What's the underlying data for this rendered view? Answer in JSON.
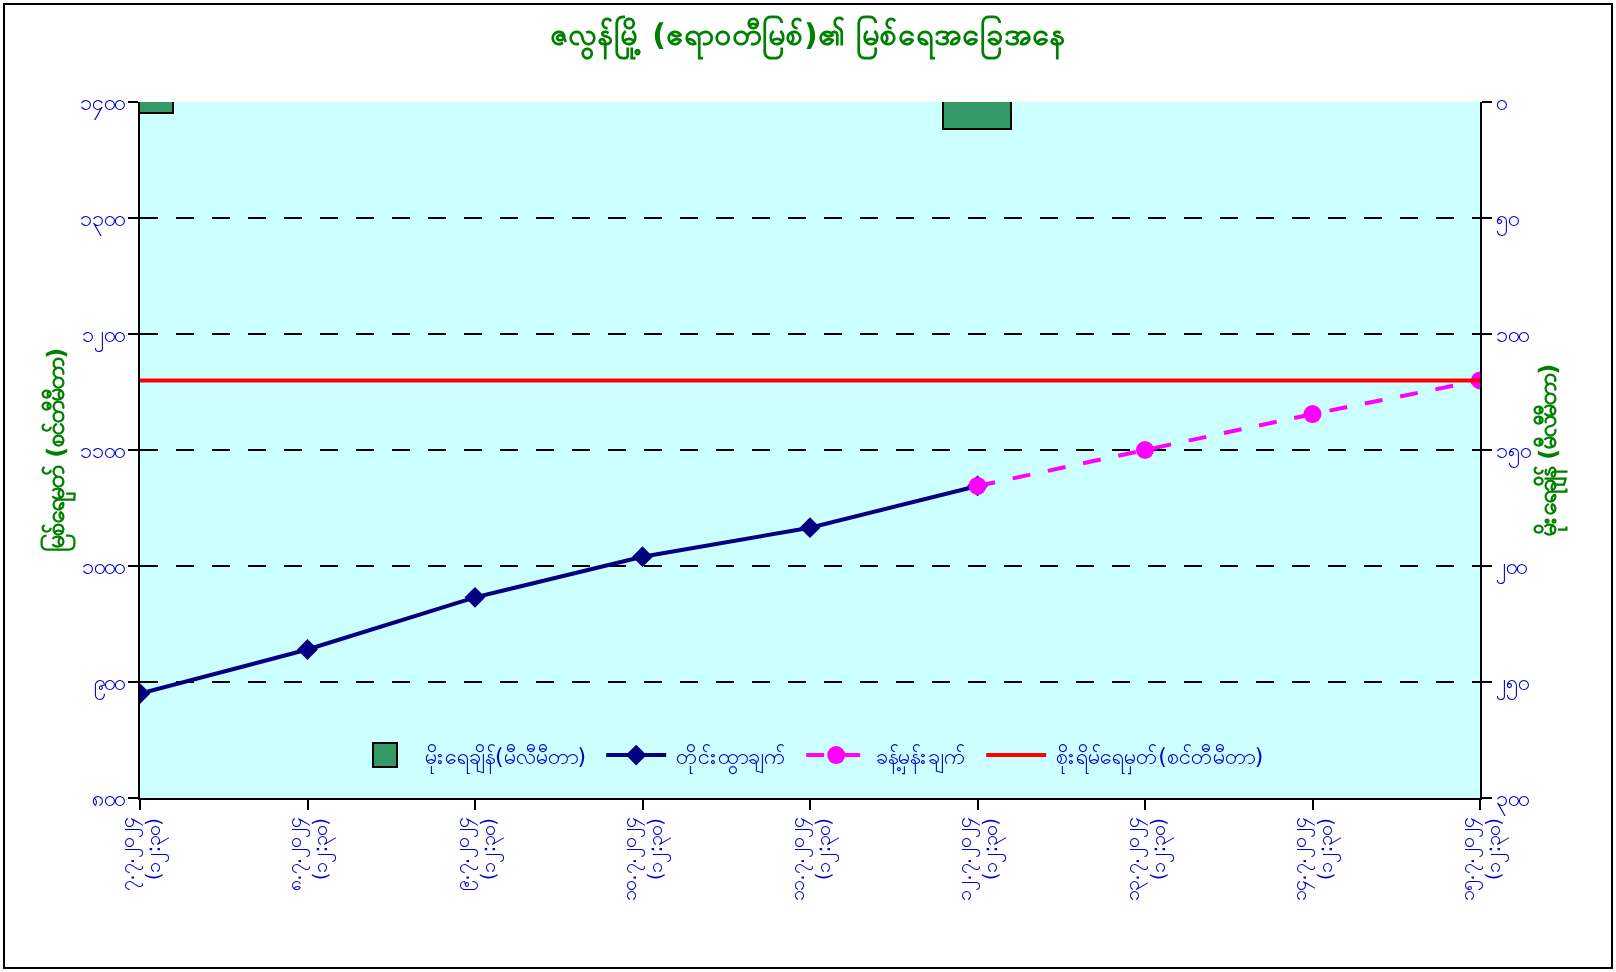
{
  "chart_data": {
    "type": "line",
    "title": "ဇလွန်မြို့ (ဧရာဝတီမြစ်)၏ မြစ်ရေအခြေအနေ",
    "ylabel": "မြစ်ရေမှတ် (စင်တီမီတာ)",
    "y2label": "မိုးရေချိန် (မီလီမီတာ)",
    "categories": [
      "၇.၇.၂၀၂၄ (၁၂:၃၀)",
      "၈.၇.၂၀၂၄ (၁၂:၃၀)",
      "၉.၇.၂၀၂၄ (၁၂:၃၀)",
      "၁၀.၇.၂၀၂၄ (၁၂:၃၀)",
      "၁၁.၇.၂၀၂၄ (၁၂:၃၀)",
      "၁၂.၇.၂၀၂၄ (၁၂:၃၀)",
      "၁၃.၇.၂၀၂၄ (၁၂:၃၀)",
      "၁၄.၇.၂၀၂၄ (၁၂:၃၀)",
      "၁၅.၇.၂၀၂၄ (၁၂:၃၀)"
    ],
    "series": [
      {
        "name": "မိုးရေချိန်(မီလီမီတာ)",
        "type": "bar",
        "axis": "y2",
        "color": "#339966",
        "values": [
          5,
          0,
          0,
          0,
          0,
          12,
          0,
          0,
          0
        ]
      },
      {
        "name": "တိုင်းထွာချက်",
        "color": "#000080",
        "marker": "diamond",
        "line_style": "solid",
        "values": [
          890,
          928,
          973,
          1008,
          1033,
          1069,
          null,
          null,
          null
        ]
      },
      {
        "name": "ခန့်မှန်းချက်",
        "color": "#ff00ff",
        "marker": "circle",
        "line_style": "dashed",
        "values": [
          null,
          null,
          null,
          null,
          null,
          1069,
          1100,
          1131,
          1160
        ]
      }
    ],
    "ref_lines": [
      {
        "axis": "y",
        "value": 1160,
        "label": "စိုးရိမ်ရေမှတ်(စင်တီမီတာ)",
        "color": "#ff0000",
        "line_style": "solid"
      }
    ],
    "ylim": [
      800,
      1400
    ],
    "yticks": [
      {
        "value": 800,
        "label": "၈၀၀"
      },
      {
        "value": 900,
        "label": "၉၀၀"
      },
      {
        "value": 1000,
        "label": "၁၀၀၀"
      },
      {
        "value": 1100,
        "label": "၁၁၀၀"
      },
      {
        "value": 1200,
        "label": "၁၂၀၀"
      },
      {
        "value": 1300,
        "label": "၁၃၀၀"
      },
      {
        "value": 1400,
        "label": "၁၄၀၀"
      }
    ],
    "y2lim": [
      300,
      0
    ],
    "y2ticks": [
      {
        "value": 0,
        "label": "၀"
      },
      {
        "value": 50,
        "label": "၅၀"
      },
      {
        "value": 100,
        "label": "၁၀၀"
      },
      {
        "value": 150,
        "label": "၁၅၀"
      },
      {
        "value": 200,
        "label": "၂၀၀"
      },
      {
        "value": 250,
        "label": "၂၅၀"
      },
      {
        "value": 300,
        "label": "၃၀၀"
      }
    ],
    "grid": "y",
    "legend": "bottom"
  }
}
